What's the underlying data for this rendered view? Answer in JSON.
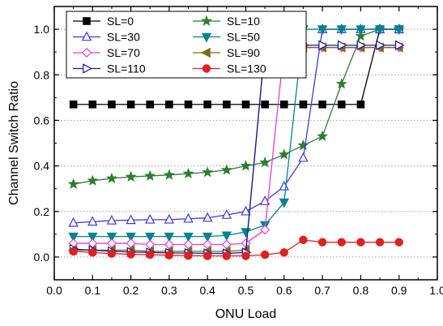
{
  "chart_data": {
    "type": "line",
    "xlabel": "ONU Load",
    "ylabel": "Channel Switch Ratio",
    "xlim": [
      0.0,
      1.0
    ],
    "ylim": [
      -0.1,
      1.1
    ],
    "xticks": [
      "0.0",
      "0.1",
      "0.2",
      "0.3",
      "0.4",
      "0.5",
      "0.6",
      "0.7",
      "0.8",
      "0.9",
      "1.0"
    ],
    "yticks": [
      "0.0",
      "0.2",
      "0.4",
      "0.6",
      "0.8",
      "1.0"
    ],
    "grid": "horizontal dotted",
    "legend_placement": "top-left",
    "x": [
      0.05,
      0.1,
      0.15,
      0.2,
      0.25,
      0.3,
      0.35,
      0.4,
      0.45,
      0.5,
      0.55,
      0.6,
      0.65,
      0.7,
      0.75,
      0.8,
      0.85,
      0.9
    ],
    "series": [
      {
        "name": "SL=0",
        "color": "#000000",
        "marker": "square",
        "filled": true,
        "values": [
          0.67,
          0.67,
          0.67,
          0.67,
          0.67,
          0.67,
          0.67,
          0.67,
          0.67,
          0.67,
          0.67,
          0.67,
          0.67,
          0.67,
          0.67,
          0.67,
          1.0,
          1.0
        ]
      },
      {
        "name": "SL=10",
        "color": "#2e7d32",
        "marker": "star",
        "filled": true,
        "values": [
          0.32,
          0.335,
          0.345,
          0.352,
          0.356,
          0.36,
          0.366,
          0.372,
          0.382,
          0.4,
          0.415,
          0.45,
          0.49,
          0.53,
          0.76,
          0.97,
          1.0,
          1.0
        ]
      },
      {
        "name": "SL=30",
        "color": "#3a3ae0",
        "marker": "triangle-up",
        "filled": false,
        "values": [
          0.15,
          0.155,
          0.16,
          0.162,
          0.164,
          0.164,
          0.168,
          0.172,
          0.185,
          0.2,
          0.245,
          0.31,
          0.435,
          1.0,
          1.0,
          1.0,
          1.0,
          1.0
        ]
      },
      {
        "name": "SL=50",
        "color": "#00838f",
        "marker": "triangle-down",
        "filled": true,
        "values": [
          0.09,
          0.09,
          0.09,
          0.09,
          0.09,
          0.09,
          0.09,
          0.09,
          0.095,
          0.11,
          0.14,
          0.24,
          1.0,
          1.0,
          1.0,
          1.0,
          1.0,
          1.0
        ]
      },
      {
        "name": "SL=70",
        "color": "#e040e0",
        "marker": "diamond",
        "filled": false,
        "values": [
          0.06,
          0.06,
          0.06,
          0.06,
          0.055,
          0.055,
          0.055,
          0.055,
          0.055,
          0.06,
          0.12,
          0.92,
          0.92,
          0.92,
          0.92,
          0.92,
          0.92,
          0.92
        ]
      },
      {
        "name": "SL=90",
        "color": "#7a6a1a",
        "marker": "triangle-left",
        "filled": true,
        "values": [
          0.03,
          0.03,
          0.03,
          0.03,
          0.025,
          0.025,
          0.025,
          0.025,
          0.025,
          0.03,
          0.92,
          0.92,
          0.92,
          0.92,
          0.92,
          0.92,
          0.92,
          0.92
        ]
      },
      {
        "name": "SL=110",
        "color": "#1a1aa0",
        "marker": "triangle-right",
        "filled": false,
        "values": [
          0.035,
          0.03,
          0.025,
          0.022,
          0.02,
          0.018,
          0.017,
          0.016,
          0.016,
          0.02,
          0.93,
          0.93,
          0.93,
          0.93,
          0.93,
          0.93,
          0.93,
          0.93
        ]
      },
      {
        "name": "SL=130",
        "color": "#e02020",
        "marker": "circle",
        "filled": true,
        "values": [
          0.025,
          0.02,
          0.015,
          0.012,
          0.01,
          0.008,
          0.006,
          0.005,
          0.005,
          0.005,
          0.01,
          0.02,
          0.075,
          0.065,
          0.065,
          0.065,
          0.065,
          0.065
        ]
      }
    ]
  }
}
